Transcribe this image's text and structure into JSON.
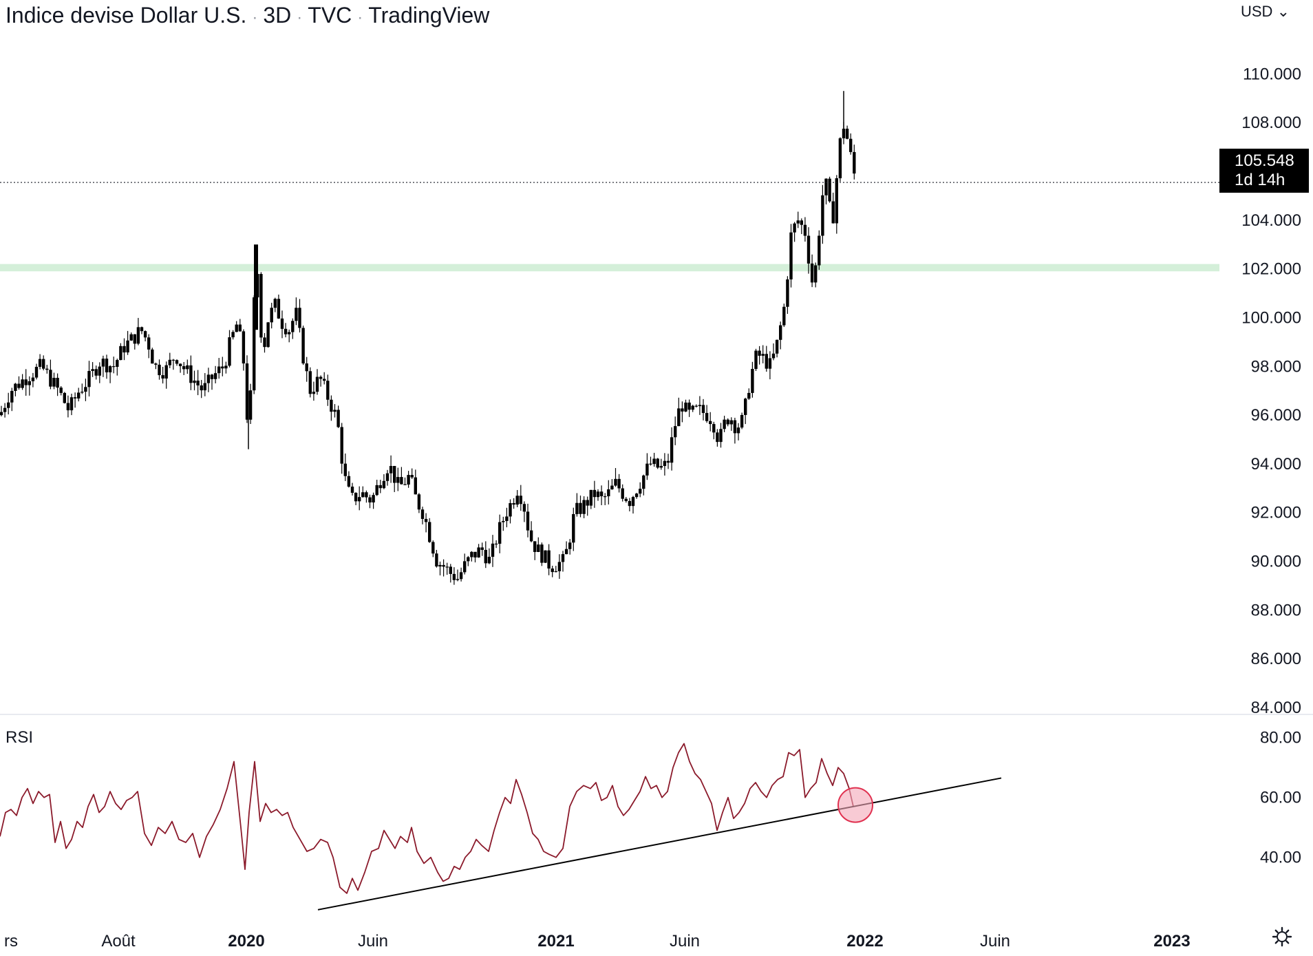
{
  "header": {
    "symbol": "Indice devise Dollar U.S.",
    "interval": "3D",
    "exchange": "TVC",
    "source": "TradingView",
    "separator": "·"
  },
  "currency_selector": "USD",
  "last_price": {
    "value": "105.548",
    "countdown": "1d 14h"
  },
  "rsi_pane": {
    "label": "RSI"
  },
  "colors": {
    "candle": "#000000",
    "support_zone": "#d4efd9",
    "rsi_line": "#8b1a2b",
    "trendline": "#000000",
    "highlight": "#f3a6b8",
    "highlight_border": "#e0304f",
    "grid_divider": "#e0e3eb"
  },
  "chart_data": [
    {
      "type": "candlestick",
      "title": "Indice devise Dollar U.S.",
      "ylim": [
        84,
        111
      ],
      "y_ticks": [
        "110.000",
        "108.000",
        "106.000",
        "104.000",
        "102.000",
        "100.000",
        "98.000",
        "96.000",
        "94.000",
        "92.000",
        "90.000",
        "88.000",
        "86.000",
        "84.000"
      ],
      "x_ticks": [
        "rs",
        "Août",
        "2020",
        "Juin",
        "2021",
        "Juin",
        "2022",
        "Juin",
        "2023"
      ],
      "x_tick_bold": [
        false,
        false,
        true,
        false,
        true,
        false,
        true,
        false,
        true
      ],
      "current_price": 105.548,
      "support_zone": [
        101.9,
        102.2
      ],
      "path_points": [
        [
          0,
          96.0
        ],
        [
          15,
          97.0
        ],
        [
          40,
          97.6
        ],
        [
          60,
          98.0
        ],
        [
          85,
          97.0
        ],
        [
          100,
          96.2
        ],
        [
          115,
          97.0
        ],
        [
          130,
          97.5
        ],
        [
          145,
          98.2
        ],
        [
          165,
          98.0
        ],
        [
          180,
          98.8
        ],
        [
          195,
          99.2
        ],
        [
          205,
          99.5
        ],
        [
          215,
          99.0
        ],
        [
          225,
          98.0
        ],
        [
          240,
          97.8
        ],
        [
          255,
          98.5
        ],
        [
          265,
          98.0
        ],
        [
          280,
          97.5
        ],
        [
          295,
          97.0
        ],
        [
          310,
          97.6
        ],
        [
          325,
          98.0
        ],
        [
          335,
          99.0
        ],
        [
          345,
          99.8
        ],
        [
          355,
          98.0
        ],
        [
          360,
          95.5
        ],
        [
          365,
          97.0
        ],
        [
          372,
          103.0
        ],
        [
          378,
          100.0
        ],
        [
          382,
          98.5
        ],
        [
          390,
          100.0
        ],
        [
          400,
          100.5
        ],
        [
          410,
          99.8
        ],
        [
          420,
          99.5
        ],
        [
          430,
          100.2
        ],
        [
          440,
          98.5
        ],
        [
          450,
          97.0
        ],
        [
          465,
          97.5
        ],
        [
          480,
          96.5
        ],
        [
          490,
          95.8
        ],
        [
          500,
          93.5
        ],
        [
          510,
          92.5
        ],
        [
          525,
          92.8
        ],
        [
          540,
          92.5
        ],
        [
          555,
          93.5
        ],
        [
          565,
          94.0
        ],
        [
          580,
          93.0
        ],
        [
          595,
          93.5
        ],
        [
          605,
          92.5
        ],
        [
          615,
          92.0
        ],
        [
          625,
          91.0
        ],
        [
          635,
          90.0
        ],
        [
          645,
          89.8
        ],
        [
          655,
          89.5
        ],
        [
          665,
          89.3
        ],
        [
          675,
          89.8
        ],
        [
          685,
          90.2
        ],
        [
          700,
          90.5
        ],
        [
          712,
          90.0
        ],
        [
          722,
          91.0
        ],
        [
          735,
          92.0
        ],
        [
          745,
          92.5
        ],
        [
          752,
          93.0
        ],
        [
          760,
          92.5
        ],
        [
          770,
          91.0
        ],
        [
          780,
          90.5
        ],
        [
          790,
          90.2
        ],
        [
          800,
          89.8
        ],
        [
          810,
          89.9
        ],
        [
          820,
          90.0
        ],
        [
          828,
          91.0
        ],
        [
          835,
          92.0
        ],
        [
          845,
          92.2
        ],
        [
          855,
          92.5
        ],
        [
          865,
          92.8
        ],
        [
          875,
          92.5
        ],
        [
          885,
          92.8
        ],
        [
          895,
          93.2
        ],
        [
          905,
          92.8
        ],
        [
          915,
          92.5
        ],
        [
          925,
          93.0
        ],
        [
          935,
          93.5
        ],
        [
          945,
          94.0
        ],
        [
          960,
          93.8
        ],
        [
          970,
          94.0
        ],
        [
          980,
          95.5
        ],
        [
          990,
          96.5
        ],
        [
          1000,
          96.0
        ],
        [
          1015,
          96.2
        ],
        [
          1030,
          96.0
        ],
        [
          1040,
          95.5
        ],
        [
          1045,
          94.8
        ],
        [
          1050,
          95.5
        ],
        [
          1060,
          96.0
        ],
        [
          1070,
          95.5
        ],
        [
          1080,
          95.8
        ],
        [
          1090,
          97.5
        ],
        [
          1100,
          98.5
        ],
        [
          1110,
          98.3
        ],
        [
          1120,
          98.0
        ],
        [
          1130,
          99.0
        ],
        [
          1140,
          100.5
        ],
        [
          1145,
          102.0
        ],
        [
          1150,
          103.5
        ],
        [
          1160,
          104.0
        ],
        [
          1170,
          103.5
        ],
        [
          1175,
          102.5
        ],
        [
          1180,
          101.5
        ],
        [
          1185,
          102.0
        ],
        [
          1190,
          103.5
        ],
        [
          1195,
          105.0
        ],
        [
          1200,
          105.5
        ],
        [
          1205,
          104.5
        ],
        [
          1210,
          104.0
        ],
        [
          1215,
          105.5
        ],
        [
          1220,
          107.0
        ],
        [
          1225,
          108.0
        ],
        [
          1230,
          107.5
        ],
        [
          1235,
          106.8
        ],
        [
          1240,
          106.0
        ],
        [
          1245,
          105.548
        ]
      ],
      "wick_notes": {
        "pre_covid_low": 94.6,
        "covid_high": 103.0,
        "peak_high": 109.3
      }
    },
    {
      "type": "line",
      "title": "RSI",
      "ylim": [
        22,
        82
      ],
      "y_ticks": [
        "80.00",
        "60.00",
        "40.00"
      ],
      "values": [
        [
          0,
          47
        ],
        [
          8,
          55
        ],
        [
          16,
          56
        ],
        [
          24,
          54
        ],
        [
          32,
          60
        ],
        [
          40,
          63
        ],
        [
          48,
          58
        ],
        [
          56,
          62
        ],
        [
          64,
          60
        ],
        [
          72,
          61
        ],
        [
          80,
          45
        ],
        [
          88,
          52
        ],
        [
          96,
          43
        ],
        [
          104,
          46
        ],
        [
          112,
          52
        ],
        [
          120,
          50
        ],
        [
          128,
          57
        ],
        [
          136,
          61
        ],
        [
          144,
          55
        ],
        [
          152,
          57
        ],
        [
          160,
          62
        ],
        [
          168,
          58
        ],
        [
          176,
          56
        ],
        [
          184,
          59
        ],
        [
          192,
          60
        ],
        [
          200,
          62
        ],
        [
          210,
          48
        ],
        [
          220,
          44
        ],
        [
          230,
          50
        ],
        [
          240,
          48
        ],
        [
          250,
          52
        ],
        [
          260,
          46
        ],
        [
          270,
          45
        ],
        [
          280,
          48
        ],
        [
          290,
          40
        ],
        [
          300,
          47
        ],
        [
          310,
          51
        ],
        [
          320,
          56
        ],
        [
          330,
          63
        ],
        [
          340,
          72
        ],
        [
          350,
          50
        ],
        [
          356,
          36
        ],
        [
          362,
          55
        ],
        [
          370,
          72
        ],
        [
          378,
          52
        ],
        [
          386,
          58
        ],
        [
          394,
          55
        ],
        [
          402,
          56
        ],
        [
          410,
          54
        ],
        [
          418,
          55
        ],
        [
          426,
          50
        ],
        [
          436,
          46
        ],
        [
          446,
          42
        ],
        [
          456,
          43
        ],
        [
          466,
          46
        ],
        [
          476,
          45
        ],
        [
          484,
          40
        ],
        [
          494,
          30
        ],
        [
          504,
          28
        ],
        [
          512,
          33
        ],
        [
          520,
          29
        ],
        [
          530,
          35
        ],
        [
          540,
          42
        ],
        [
          550,
          43
        ],
        [
          558,
          49
        ],
        [
          566,
          46
        ],
        [
          574,
          43
        ],
        [
          582,
          47
        ],
        [
          592,
          45
        ],
        [
          598,
          50
        ],
        [
          606,
          42
        ],
        [
          616,
          38
        ],
        [
          626,
          40
        ],
        [
          636,
          35
        ],
        [
          644,
          32
        ],
        [
          652,
          33
        ],
        [
          660,
          37
        ],
        [
          668,
          36
        ],
        [
          676,
          40
        ],
        [
          684,
          42
        ],
        [
          692,
          46
        ],
        [
          700,
          44
        ],
        [
          710,
          42
        ],
        [
          718,
          49
        ],
        [
          726,
          55
        ],
        [
          734,
          60
        ],
        [
          742,
          58
        ],
        [
          750,
          66
        ],
        [
          758,
          61
        ],
        [
          766,
          55
        ],
        [
          774,
          48
        ],
        [
          782,
          46
        ],
        [
          790,
          42
        ],
        [
          798,
          41
        ],
        [
          808,
          40
        ],
        [
          818,
          43
        ],
        [
          828,
          57
        ],
        [
          838,
          62
        ],
        [
          848,
          64
        ],
        [
          858,
          63
        ],
        [
          866,
          65
        ],
        [
          874,
          59
        ],
        [
          882,
          60
        ],
        [
          890,
          64
        ],
        [
          898,
          57
        ],
        [
          906,
          54
        ],
        [
          914,
          56
        ],
        [
          922,
          59
        ],
        [
          930,
          62
        ],
        [
          938,
          67
        ],
        [
          946,
          63
        ],
        [
          954,
          64
        ],
        [
          962,
          60
        ],
        [
          970,
          62
        ],
        [
          978,
          70
        ],
        [
          986,
          75
        ],
        [
          994,
          78
        ],
        [
          1002,
          72
        ],
        [
          1010,
          68
        ],
        [
          1018,
          66
        ],
        [
          1026,
          62
        ],
        [
          1034,
          58
        ],
        [
          1042,
          49
        ],
        [
          1050,
          55
        ],
        [
          1058,
          60
        ],
        [
          1066,
          53
        ],
        [
          1074,
          55
        ],
        [
          1082,
          58
        ],
        [
          1090,
          63
        ],
        [
          1098,
          65
        ],
        [
          1106,
          62
        ],
        [
          1114,
          60
        ],
        [
          1122,
          64
        ],
        [
          1130,
          66
        ],
        [
          1138,
          67
        ],
        [
          1146,
          75
        ],
        [
          1154,
          74
        ],
        [
          1162,
          76
        ],
        [
          1170,
          60
        ],
        [
          1178,
          63
        ],
        [
          1186,
          65
        ],
        [
          1194,
          73
        ],
        [
          1202,
          68
        ],
        [
          1210,
          64
        ],
        [
          1218,
          70
        ],
        [
          1226,
          68
        ],
        [
          1234,
          63
        ],
        [
          1240,
          57
        ]
      ],
      "trendline": {
        "start": [
          462,
          22.5
        ],
        "end": [
          1455,
          66.5
        ]
      },
      "highlight_point": [
        1243,
        57.5
      ]
    }
  ]
}
